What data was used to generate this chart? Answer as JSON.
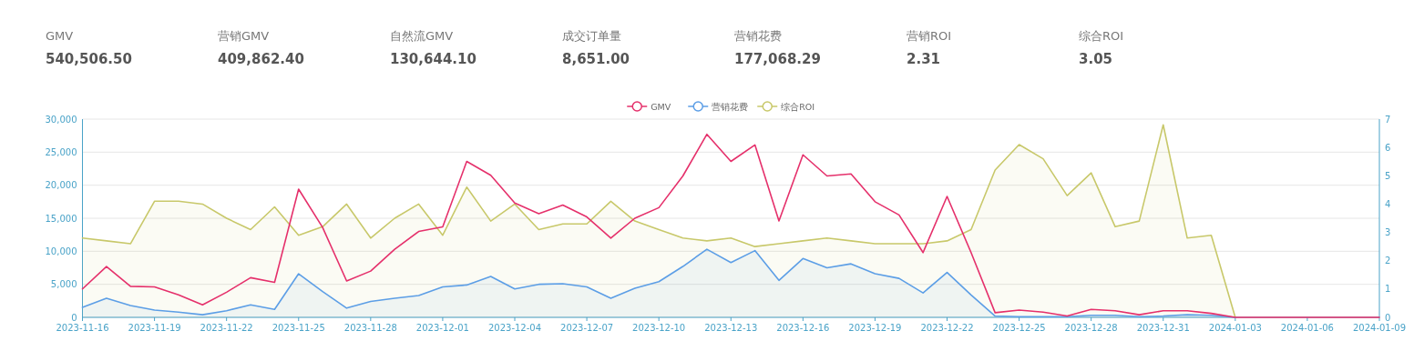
{
  "chart_data": [
    {
      "type": "other",
      "annotations": [
        "GMV",
        "540,506.50",
        "营销GMV",
        "409,862.40",
        "自然流GMV",
        "130,644.10",
        "成交订单量",
        "8,651.00",
        "营销花费",
        "177,068.29",
        "营销ROI",
        "2.31",
        "综合ROI",
        "3.05"
      ]
    },
    {
      "type": "line",
      "x": [
        "2023-11-16",
        "2023-11-17",
        "2023-11-18",
        "2023-11-19",
        "2023-11-20",
        "2023-11-21",
        "2023-11-22",
        "2023-11-23",
        "2023-11-24",
        "2023-11-25",
        "2023-11-26",
        "2023-11-27",
        "2023-11-28",
        "2023-11-29",
        "2023-11-30",
        "2023-12-01",
        "2023-12-02",
        "2023-12-03",
        "2023-12-04",
        "2023-12-05",
        "2023-12-06",
        "2023-12-07",
        "2023-12-08",
        "2023-12-09",
        "2023-12-10",
        "2023-12-11",
        "2023-12-12",
        "2023-12-13",
        "2023-12-14",
        "2023-12-15",
        "2023-12-16",
        "2023-12-17",
        "2023-12-18",
        "2023-12-19",
        "2023-12-20",
        "2023-12-21",
        "2023-12-22",
        "2023-12-23",
        "2023-12-24",
        "2023-12-25",
        "2023-12-26",
        "2023-12-27",
        "2023-12-28",
        "2023-12-29",
        "2023-12-30",
        "2023-12-31",
        "2024-01-01",
        "2024-01-02",
        "2024-01-03",
        "2024-01-04",
        "2024-01-05",
        "2024-01-06",
        "2024-01-07",
        "2024-01-08",
        "2024-01-09"
      ],
      "series": [
        {
          "name": "GMV",
          "color": "#e5306b",
          "values": [
            4300,
            7700,
            4700,
            4600,
            3400,
            1900,
            3800,
            6000,
            5300,
            19400,
            13600,
            5500,
            7000,
            10300,
            13000,
            13700,
            23600,
            21500,
            17300,
            15700,
            17000,
            15200,
            12000,
            15000,
            16600,
            21400,
            27700,
            23600,
            26100,
            14600,
            24600,
            21400,
            21700,
            17500,
            15500,
            9800,
            18300,
            9800,
            700,
            1100,
            800,
            200,
            1200,
            1000,
            400,
            1000,
            1000,
            600,
            0,
            0,
            0,
            0,
            0,
            0,
            0
          ]
        },
        {
          "name": "营销花费",
          "type": "area",
          "color": "#5c9ee6",
          "values": [
            1500,
            2900,
            1800,
            1100,
            800,
            400,
            1000,
            1900,
            1200,
            6600,
            3900,
            1400,
            2400,
            2900,
            3300,
            4600,
            4900,
            6200,
            4300,
            5000,
            5100,
            4600,
            2900,
            4400,
            5400,
            7700,
            10300,
            8300,
            10100,
            5600,
            8900,
            7500,
            8100,
            6600,
            5900,
            3700,
            6800,
            3400,
            200,
            100,
            100,
            100,
            300,
            300,
            100,
            200,
            400,
            300,
            0,
            null,
            null,
            null,
            null,
            null,
            null
          ]
        },
        {
          "name": "综合ROI",
          "type": "area",
          "axis": "y2",
          "color": "#c8c86a",
          "values": [
            2.8,
            2.7,
            2.6,
            4.1,
            4.1,
            4.0,
            3.5,
            3.1,
            3.9,
            2.9,
            3.2,
            4.0,
            2.8,
            3.5,
            4.0,
            2.9,
            4.6,
            3.4,
            4.0,
            3.1,
            3.3,
            3.3,
            4.1,
            3.4,
            3.1,
            2.8,
            2.7,
            2.8,
            2.5,
            2.6,
            2.7,
            2.8,
            2.7,
            2.6,
            2.6,
            2.6,
            2.7,
            3.1,
            5.2,
            6.1,
            5.6,
            4.3,
            5.1,
            3.2,
            3.4,
            6.8,
            2.8,
            2.9,
            0,
            null,
            null,
            null,
            null,
            null,
            null
          ]
        }
      ],
      "xlim": [
        "2023-11-16",
        "2024-01-09"
      ],
      "xticks": [
        "2023-11-16",
        "2023-11-19",
        "2023-11-22",
        "2023-11-25",
        "2023-11-28",
        "2023-12-01",
        "2023-12-04",
        "2023-12-07",
        "2023-12-10",
        "2023-12-13",
        "2023-12-16",
        "2023-12-19",
        "2023-12-22",
        "2023-12-25",
        "2023-12-28",
        "2023-12-31",
        "2024-01-03",
        "2024-01-06",
        "2024-01-09"
      ],
      "ylim": [
        0,
        30000
      ],
      "yticks": [
        0,
        {
          "value": 5000,
          "label": "5,000"
        },
        {
          "value": 10000,
          "label": "10,000"
        },
        {
          "value": 15000,
          "label": "15,000"
        },
        {
          "value": 20000,
          "label": "20,000"
        },
        {
          "value": 25000,
          "label": "25,000"
        },
        {
          "value": 30000,
          "label": "30,000"
        }
      ],
      "y2lim": [
        0,
        7
      ],
      "y2ticks": [
        0,
        1,
        2,
        3,
        4,
        5,
        6,
        7
      ],
      "grid": "y",
      "legend": "top",
      "line_style": "solid"
    }
  ]
}
